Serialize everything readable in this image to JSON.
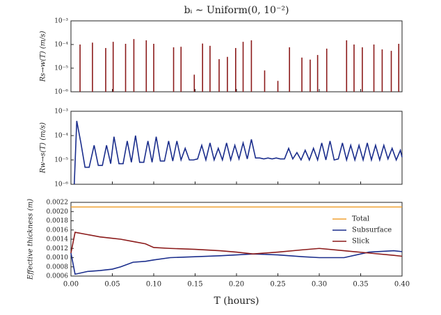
{
  "chart_data": [
    {
      "type": "bar",
      "title": "bᵢ ∼ Uniform(0, 10⁻²)",
      "y_label": "Rs→w(T) (m/s)",
      "x": [
        0.011,
        0.026,
        0.042,
        0.051,
        0.066,
        0.076,
        0.091,
        0.1,
        0.124,
        0.133,
        0.149,
        0.159,
        0.168,
        0.179,
        0.189,
        0.199,
        0.208,
        0.218,
        0.234,
        0.25,
        0.264,
        0.279,
        0.289,
        0.298,
        0.309,
        0.333,
        0.342,
        0.352,
        0.366,
        0.376,
        0.387,
        0.396
      ],
      "values": [
        0.0001,
        0.00012,
        7.1e-05,
        0.00013,
        0.000107,
        0.00017,
        0.00015,
        0.000107,
        7.6e-05,
        8e-05,
        5.3e-06,
        0.00011,
        8.8e-05,
        2.4e-05,
        3e-05,
        7.1e-05,
        0.00013,
        0.00015,
        8e-06,
        2.9e-06,
        7.6e-05,
        2.8e-05,
        2.3e-05,
        3.6e-05,
        6.7e-05,
        0.00015,
        0.0001,
        7.6e-05,
        0.0001,
        6.2e-05,
        5.4e-05,
        0.000107
      ],
      "color": "#8b1a1a",
      "yscale": "log",
      "xlim": [
        0,
        0.4
      ],
      "ylim": [
        1e-06,
        0.001
      ],
      "yticks": [
        {
          "value": 1e-06,
          "label": "10⁻⁶"
        },
        {
          "value": 1e-05,
          "label": "10⁻⁵"
        },
        {
          "value": 0.0001,
          "label": "10⁻⁴"
        },
        {
          "value": 0.001,
          "label": "10⁻³"
        }
      ]
    },
    {
      "type": "line",
      "y_label": "Rw→s(T) (m/s)",
      "x": [
        0.004,
        0.007,
        0.012,
        0.017,
        0.022,
        0.028,
        0.033,
        0.038,
        0.043,
        0.048,
        0.052,
        0.058,
        0.063,
        0.068,
        0.073,
        0.078,
        0.083,
        0.088,
        0.093,
        0.098,
        0.103,
        0.108,
        0.113,
        0.118,
        0.123,
        0.128,
        0.133,
        0.138,
        0.143,
        0.148,
        0.153,
        0.158,
        0.163,
        0.168,
        0.173,
        0.178,
        0.183,
        0.188,
        0.193,
        0.198,
        0.203,
        0.208,
        0.213,
        0.218,
        0.223,
        0.228,
        0.233,
        0.238,
        0.243,
        0.248,
        0.253,
        0.258,
        0.263,
        0.268,
        0.273,
        0.278,
        0.283,
        0.288,
        0.293,
        0.298,
        0.303,
        0.308,
        0.313,
        0.318,
        0.323,
        0.328,
        0.333,
        0.338,
        0.343,
        0.348,
        0.353,
        0.358,
        0.363,
        0.368,
        0.373,
        0.378,
        0.383,
        0.388,
        0.393,
        0.398,
        0.4
      ],
      "values": [
        1e-06,
        0.0004,
        5e-05,
        5e-06,
        5e-06,
        4e-05,
        6e-06,
        6e-06,
        4e-05,
        7e-06,
        9e-05,
        7e-06,
        7e-06,
        6e-05,
        8e-06,
        0.0001,
        8e-06,
        8e-06,
        6e-05,
        8e-06,
        9e-05,
        9e-06,
        9e-06,
        6e-05,
        9e-06,
        6e-05,
        1e-05,
        3e-05,
        1e-05,
        1e-05,
        1.1e-05,
        4e-05,
        1e-05,
        5e-05,
        1e-05,
        3e-05,
        1e-05,
        5e-05,
        1e-05,
        4e-05,
        1.1e-05,
        5e-05,
        1.1e-05,
        7e-05,
        1.2e-05,
        1.2e-05,
        1.1e-05,
        1.2e-05,
        1.1e-05,
        1.2e-05,
        1.1e-05,
        1.1e-05,
        3e-05,
        1.1e-05,
        2e-05,
        1e-05,
        2.5e-05,
        1e-05,
        3e-05,
        1e-05,
        5e-05,
        1e-05,
        6e-05,
        1e-05,
        1.1e-05,
        5e-05,
        1e-05,
        4e-05,
        1e-05,
        4e-05,
        1e-05,
        5e-05,
        1e-05,
        4e-05,
        1e-05,
        4e-05,
        1.1e-05,
        3e-05,
        1e-05,
        2.5e-05,
        1.3e-05
      ],
      "color": "#1a2d8c",
      "yscale": "log",
      "xlim": [
        0,
        0.4
      ],
      "ylim": [
        1e-06,
        0.001
      ],
      "yticks": [
        {
          "value": 1e-06,
          "label": "10⁻⁶"
        },
        {
          "value": 1e-05,
          "label": "10⁻⁵"
        },
        {
          "value": 0.0001,
          "label": "10⁻⁴"
        },
        {
          "value": 0.001,
          "label": "10⁻³"
        }
      ]
    },
    {
      "type": "line",
      "y_label": "Effective thickness (m)",
      "x_label": "T (hours)",
      "x": [
        0,
        0.005,
        0.02,
        0.035,
        0.05,
        0.06,
        0.075,
        0.09,
        0.1,
        0.12,
        0.15,
        0.18,
        0.2,
        0.22,
        0.25,
        0.28,
        0.3,
        0.33,
        0.36,
        0.39,
        0.4
      ],
      "series": [
        {
          "name": "Total",
          "color": "#f0a030",
          "values": [
            0.0021,
            0.0021,
            0.0021,
            0.0021,
            0.0021,
            0.0021,
            0.0021,
            0.0021,
            0.0021,
            0.0021,
            0.0021,
            0.0021,
            0.0021,
            0.0021,
            0.0021,
            0.0021,
            0.0021,
            0.0021,
            0.0021,
            0.0021,
            0.0021
          ]
        },
        {
          "name": "Subsurface",
          "color": "#1a2d8c",
          "values": [
            0.0011,
            0.00064,
            0.0007,
            0.00072,
            0.00075,
            0.0008,
            0.0009,
            0.00092,
            0.00095,
            0.001,
            0.00102,
            0.00104,
            0.00106,
            0.00108,
            0.00106,
            0.00102,
            0.001,
            0.001,
            0.00112,
            0.00115,
            0.00113
          ]
        },
        {
          "name": "Slick",
          "color": "#8b1a1a",
          "values": [
            0.0011,
            0.00155,
            0.0015,
            0.00145,
            0.00142,
            0.0014,
            0.00135,
            0.0013,
            0.00122,
            0.0012,
            0.00118,
            0.00115,
            0.00112,
            0.00108,
            0.00112,
            0.00117,
            0.0012,
            0.00115,
            0.0011,
            0.00105,
            0.00103
          ]
        }
      ],
      "legend": "upper right",
      "xlim": [
        0,
        0.4
      ],
      "ylim": [
        0.0006,
        0.0022
      ],
      "yticks": [
        0.0006,
        0.0008,
        {
          "value": 0.001,
          "label": "0.0010"
        },
        0.0012,
        0.0014,
        0.0016,
        0.0018,
        {
          "value": 0.002,
          "label": "0.0020"
        },
        0.0022
      ],
      "xticks": [
        {
          "value": 0,
          "label": "0.00"
        },
        0.05,
        {
          "value": 0.1,
          "label": "0.10"
        },
        0.15,
        {
          "value": 0.2,
          "label": "0.20"
        },
        0.25,
        {
          "value": 0.3,
          "label": "0.30"
        },
        0.35,
        {
          "value": 0.4,
          "label": "0.40"
        }
      ]
    }
  ]
}
